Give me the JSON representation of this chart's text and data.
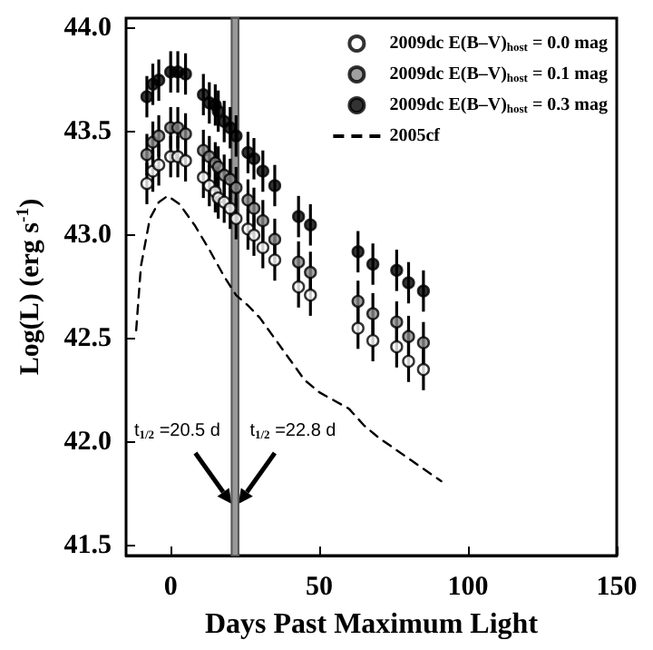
{
  "chart_data": {
    "type": "scatter",
    "xlabel": "Days Past Maximum Light",
    "ylabel": "Log(L) (erg s$^{-1}$)",
    "xlim": [
      -15,
      150
    ],
    "ylim": [
      41.45,
      44.05
    ],
    "xticks": [
      0,
      50,
      100,
      150
    ],
    "yticks": [
      41.5,
      {
        "value": 42,
        "label": "42.0"
      },
      42.5,
      {
        "value": 43,
        "label": "43.0"
      },
      43.5,
      {
        "value": 44,
        "label": "44.0"
      }
    ],
    "grid": false,
    "legend": "top right",
    "series": [
      {
        "name": "2009dc E(B–V)$_{host}$ = 0.0 mag",
        "marker": "circle",
        "color": "#ffffff",
        "x": [
          -8,
          -6,
          -4,
          0,
          2.4,
          5,
          11,
          13,
          15,
          16,
          18,
          20,
          22,
          26,
          28,
          31,
          35,
          43,
          47,
          63,
          68,
          76,
          80,
          85
        ],
        "values": [
          43.25,
          43.31,
          43.34,
          43.38,
          43.38,
          43.36,
          43.28,
          43.24,
          43.21,
          43.18,
          43.16,
          43.13,
          43.08,
          43.03,
          43.0,
          42.94,
          42.88,
          42.75,
          42.71,
          42.55,
          42.49,
          42.46,
          42.39,
          42.35
        ],
        "errors": [
          0.1,
          0.1,
          0.1,
          0.1,
          0.1,
          0.1,
          0.1,
          0.1,
          0.1,
          0.1,
          0.1,
          0.1,
          0.1,
          0.1,
          0.1,
          0.1,
          0.1,
          0.1,
          0.1,
          0.1,
          0.1,
          0.1,
          0.1,
          0.1
        ]
      },
      {
        "name": "2009dc E(B–V)$_{host}$ = 0.1 mag",
        "marker": "circle",
        "color": "#888888",
        "x": [
          -8,
          -6,
          -4,
          0,
          2.4,
          5,
          11,
          13,
          15,
          16,
          18,
          20,
          22,
          26,
          28,
          31,
          35,
          43,
          47,
          63,
          68,
          76,
          80,
          85
        ],
        "values": [
          43.39,
          43.45,
          43.48,
          43.52,
          43.52,
          43.49,
          43.41,
          43.38,
          43.35,
          43.33,
          43.29,
          43.27,
          43.23,
          43.17,
          43.13,
          43.07,
          42.98,
          42.87,
          42.82,
          42.68,
          42.62,
          42.58,
          42.51,
          42.48
        ],
        "errors": [
          0.1,
          0.1,
          0.1,
          0.1,
          0.1,
          0.1,
          0.1,
          0.1,
          0.1,
          0.1,
          0.1,
          0.1,
          0.1,
          0.1,
          0.1,
          0.1,
          0.1,
          0.1,
          0.1,
          0.1,
          0.1,
          0.1,
          0.1,
          0.1
        ]
      },
      {
        "name": "2009dc E(B–V)$_{host}$ = 0.3 mag",
        "marker": "circle",
        "color": "#000000",
        "x": [
          -8,
          -6,
          -4,
          0,
          2.4,
          5,
          11,
          13,
          15,
          16,
          18,
          20,
          22,
          26,
          28,
          31,
          35,
          43,
          47,
          63,
          68,
          76,
          80,
          85
        ],
        "values": [
          43.67,
          43.73,
          43.75,
          43.79,
          43.79,
          43.78,
          43.68,
          43.64,
          43.63,
          43.6,
          43.55,
          43.52,
          43.48,
          43.4,
          43.37,
          43.31,
          43.24,
          43.09,
          43.05,
          42.92,
          42.86,
          42.83,
          42.77,
          42.73
        ],
        "errors": [
          0.1,
          0.1,
          0.1,
          0.1,
          0.1,
          0.1,
          0.1,
          0.1,
          0.1,
          0.1,
          0.1,
          0.1,
          0.1,
          0.1,
          0.1,
          0.1,
          0.1,
          0.1,
          0.1,
          0.1,
          0.1,
          0.1,
          0.1,
          0.1
        ]
      },
      {
        "name": "2005cf",
        "type": "line",
        "marker": "none",
        "line_style": "dashed",
        "color": "#000000",
        "x": [
          -11.6,
          -10,
          -7,
          -4,
          -1,
          3,
          8,
          13,
          18,
          22,
          26,
          30,
          35,
          40,
          45,
          50,
          55,
          60,
          65,
          70,
          75,
          80,
          85,
          91
        ],
        "values": [
          42.54,
          42.85,
          43.08,
          43.16,
          43.19,
          43.15,
          43.05,
          42.93,
          42.8,
          42.71,
          42.66,
          42.6,
          42.5,
          42.4,
          42.3,
          42.24,
          42.2,
          42.16,
          42.08,
          42.02,
          41.97,
          41.92,
          41.87,
          41.81
        ]
      }
    ],
    "bands": [
      {
        "axis": "x",
        "from": 20.5,
        "to": 22.8,
        "color": "#999999"
      }
    ],
    "annotations": [
      {
        "text": "t$_{1/2}$ =20.5 d",
        "x": 20.5,
        "y": 41.7
      },
      {
        "text": "t$_{1/2}$ =22.8 d",
        "x": 22.8,
        "y": 41.7
      }
    ]
  }
}
